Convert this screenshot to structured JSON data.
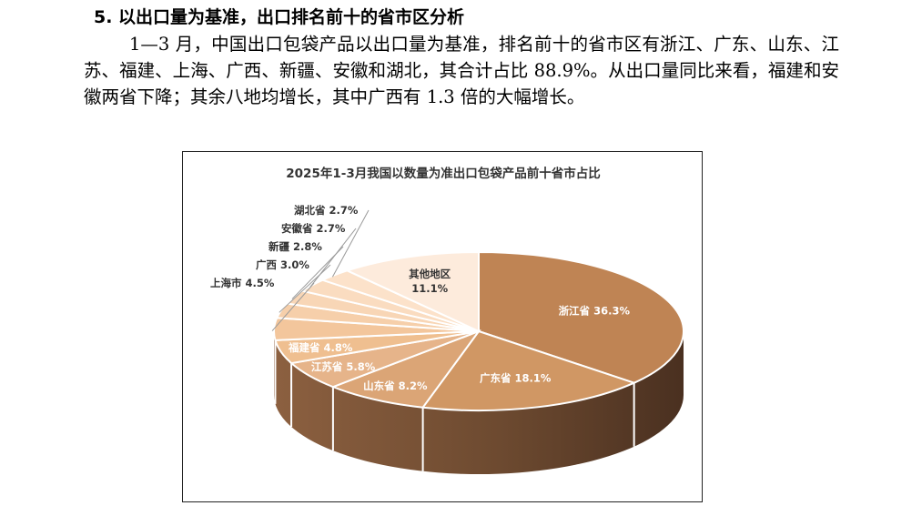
{
  "section": {
    "heading": "5. 以出口量为基准，出口排名前十的省市区分析",
    "paragraph": "1—3 月，中国出口包袋产品以出口量为基准，排名前十的省市区有浙江、广东、山东、江苏、福建、上海、广西、新疆、安徽和湖北，其合计占比 88.9%。从出口量同比来看，福建和安徽两省下降；其余八地均增长，其中广西有 1.3 倍的大幅增长。"
  },
  "chart_data": {
    "type": "pie",
    "title": "2025年1-3月我国以数量为准出口包袋产品前十省市占比",
    "unit": "%",
    "slices": [
      {
        "name": "浙江省",
        "value": 36.3,
        "color": "#bf8454"
      },
      {
        "name": "广东省",
        "value": 18.1,
        "color": "#d09764"
      },
      {
        "name": "山东省",
        "value": 8.2,
        "color": "#dba576"
      },
      {
        "name": "江苏省",
        "value": 5.8,
        "color": "#e6b48a"
      },
      {
        "name": "福建省",
        "value": 4.8,
        "color": "#efbf90"
      },
      {
        "name": "上海市",
        "value": 4.5,
        "color": "#f3c69c"
      },
      {
        "name": "广西",
        "value": 3.0,
        "color": "#f6cfaa"
      },
      {
        "name": "新疆",
        "value": 2.8,
        "color": "#f8d6b6"
      },
      {
        "name": "安徽省",
        "value": 2.7,
        "color": "#fadcc0"
      },
      {
        "name": "湖北省",
        "value": 2.7,
        "color": "#fce2ca"
      },
      {
        "name": "其他地区",
        "value": 11.1,
        "color": "#fdebdc"
      }
    ]
  }
}
